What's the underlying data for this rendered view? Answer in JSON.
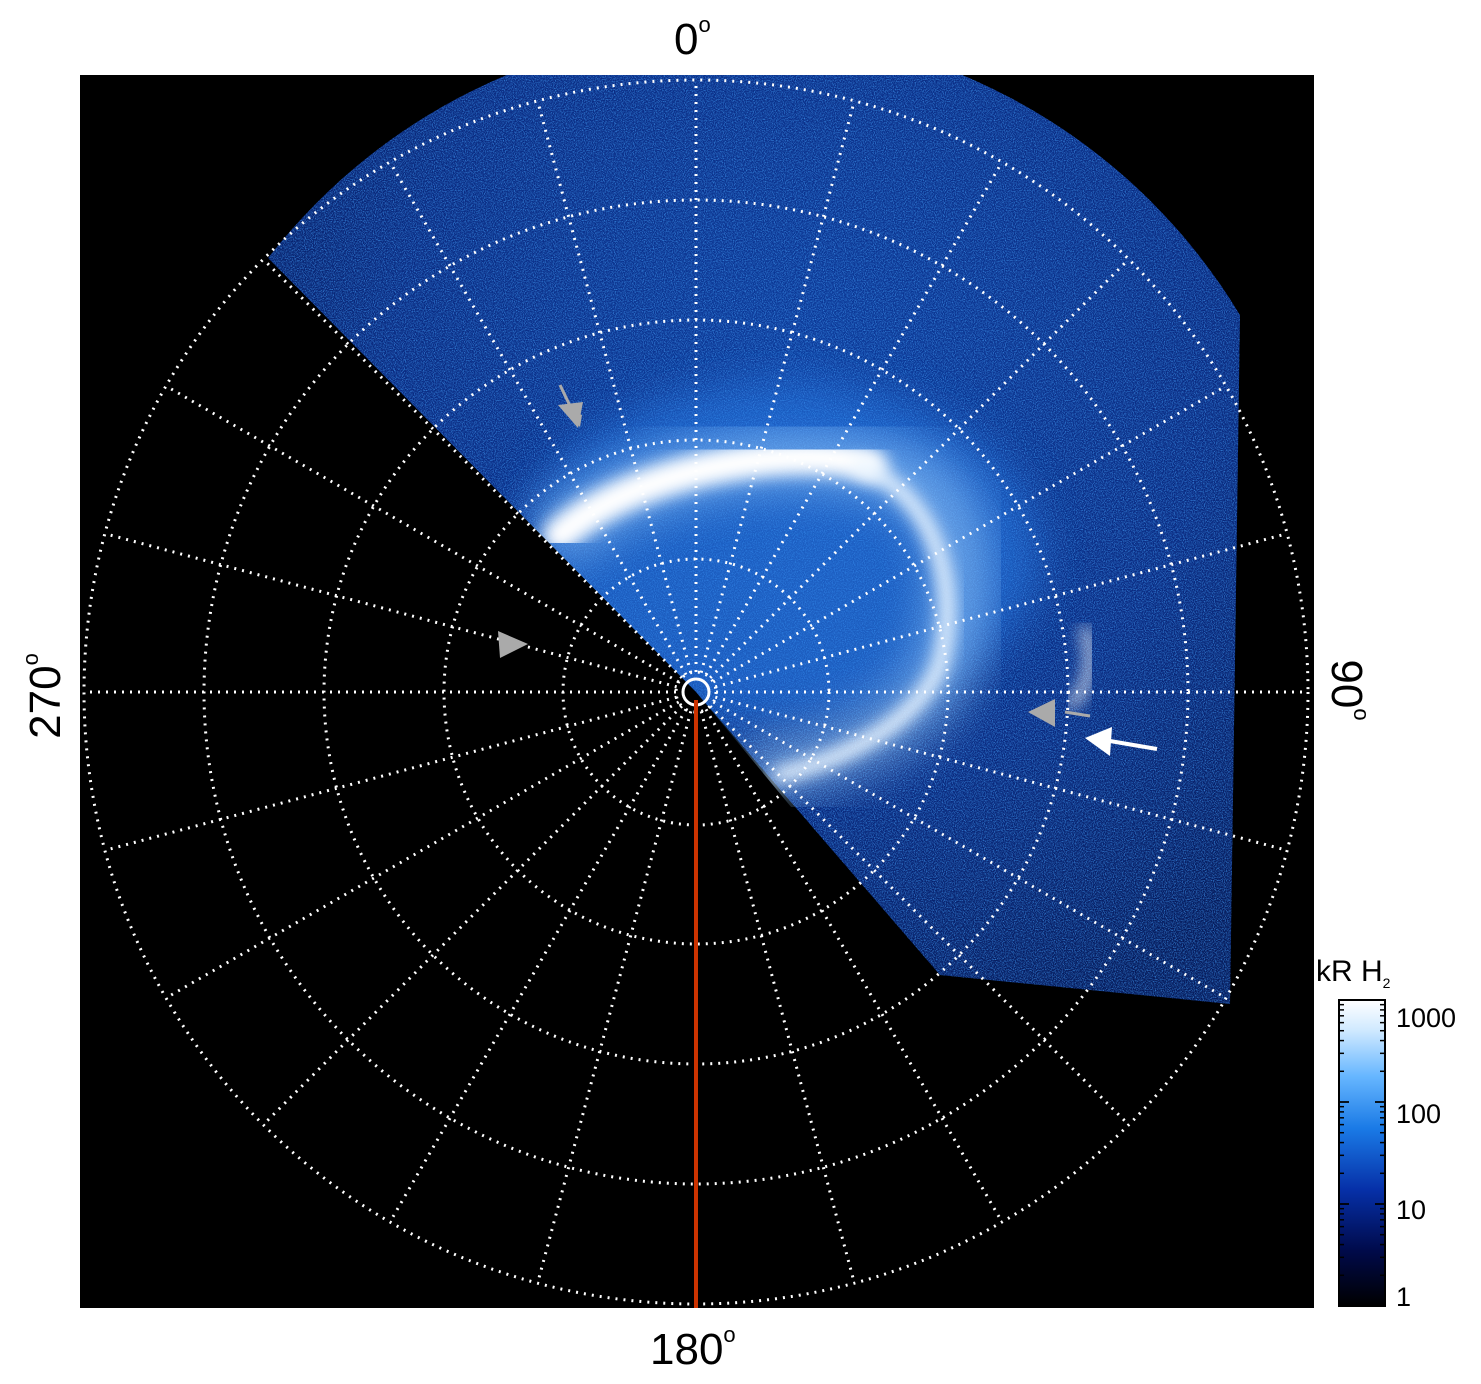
{
  "figure": {
    "colors": {
      "background": "#000000",
      "grid": "#ffffff",
      "meridian_line": "#cc3300",
      "arrow_gray": "#aaaaaa",
      "arrow_white": "#ffffff"
    },
    "colormap": [
      "#000000",
      "#000a4a",
      "#0630a8",
      "#1a7ae6",
      "#66b6ff",
      "#cfe9ff",
      "#ffffff"
    ]
  },
  "axis_labels": {
    "top": "0",
    "bottom": "180",
    "left": "270",
    "right": "90",
    "degree_symbol": "o"
  },
  "colorbar": {
    "title_main": "kR H",
    "title_sub": "2",
    "ticks": [
      "1000",
      "100",
      "10",
      "1"
    ],
    "scale": "log",
    "range": [
      1,
      1000
    ]
  },
  "grid": {
    "meridian_step_deg": 15,
    "latitude_circles": 5
  },
  "annotations": {
    "arrows": [
      {
        "color": "gray",
        "direction": "down-right"
      },
      {
        "color": "gray",
        "direction": "right"
      },
      {
        "color": "gray",
        "direction": "left"
      },
      {
        "color": "white",
        "direction": "left"
      }
    ]
  }
}
